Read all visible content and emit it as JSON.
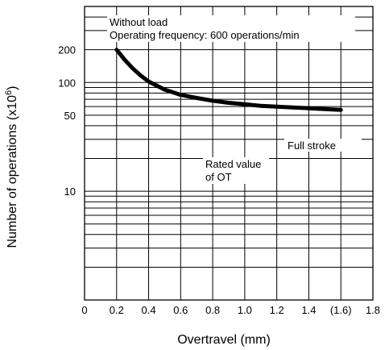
{
  "chart_data": {
    "type": "line",
    "xlabel": "Overtravel (mm)",
    "ylabel_main": "Number of operations  (x10",
    "ylabel_exp": "6",
    "ylabel_close": ")",
    "xlim": [
      0,
      1.8
    ],
    "ylim": [
      1,
      500
    ],
    "y_scale": "log",
    "grid": true,
    "x_ticks": [
      {
        "value": 0,
        "label": "0"
      },
      {
        "value": 0.2,
        "label": "0.2"
      },
      {
        "value": 0.4,
        "label": "0.4"
      },
      {
        "value": 0.6,
        "label": "0.6"
      },
      {
        "value": 0.8,
        "label": "0.8"
      },
      {
        "value": 1.0,
        "label": "1.0"
      },
      {
        "value": 1.2,
        "label": "1.2"
      },
      {
        "value": 1.4,
        "label": "1.4"
      },
      {
        "value": 1.6,
        "label": "(1.6)"
      },
      {
        "value": 1.8,
        "label": "1.8"
      }
    ],
    "y_ticks": [
      {
        "value": 200,
        "label": "200"
      },
      {
        "value": 100,
        "label": "100"
      },
      {
        "value": 50,
        "label": "50"
      },
      {
        "value": 10,
        "label": "10"
      }
    ],
    "series": [
      {
        "x": [
          0.2,
          0.25,
          0.3,
          0.35,
          0.4,
          0.5,
          0.6,
          0.7,
          0.8,
          0.9,
          1.0,
          1.1,
          1.2,
          1.3,
          1.4,
          1.5,
          1.6
        ],
        "y": [
          200,
          162,
          135,
          116,
          102,
          86,
          77,
          72,
          68,
          65,
          63,
          61,
          60,
          59,
          58,
          57,
          56
        ]
      }
    ],
    "annotations": {
      "condition_line1": "Without load",
      "condition_line2": "Operating frequency: 600 operations/min",
      "full_stroke": "Full stroke",
      "rated_line1": "Rated value",
      "rated_line2": "of OT"
    }
  }
}
